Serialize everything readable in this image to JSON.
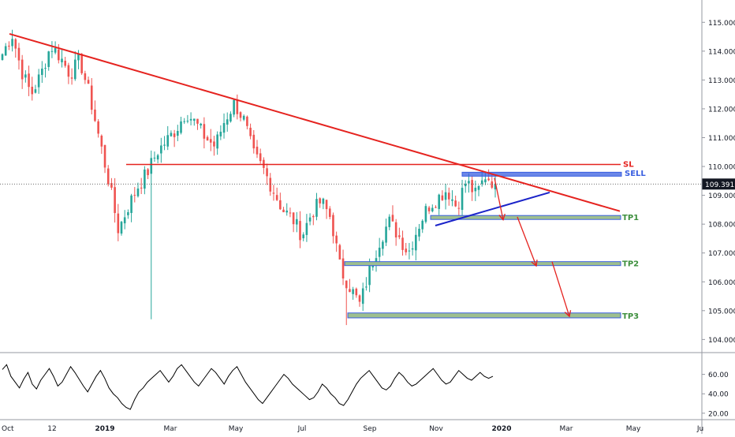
{
  "chart_data": [
    {
      "type": "candlestick",
      "series_name": "",
      "y_axis": {
        "min": 103.6,
        "max": 115.5,
        "ticks": [
          "115.000",
          "114.000",
          "113.000",
          "112.000",
          "111.000",
          "110.000",
          "109.000",
          "108.000",
          "107.000",
          "106.000",
          "105.000",
          "104.000"
        ],
        "position": "right"
      },
      "x_axis": {
        "ticks": [
          "Oct",
          "12",
          "2019",
          "Mar",
          "May",
          "Jul",
          "Sep",
          "Nov",
          "2020",
          "Mar",
          "May",
          "Ju"
        ]
      },
      "last_price": {
        "label": "109.391",
        "value": 109.391,
        "color": "#131722"
      },
      "candles_trend": [
        [
          "Oct",
          113.9
        ],
        [
          "Oct",
          114.6
        ],
        [
          "Oct",
          113.3
        ],
        [
          "Oct",
          112.5
        ],
        [
          "Oct",
          113.2
        ],
        [
          "12",
          114.2
        ],
        [
          "12",
          113.8
        ],
        [
          "12",
          113.2
        ],
        [
          "12",
          113.7
        ],
        [
          "12",
          112.5
        ],
        [
          "12",
          111.0
        ],
        [
          "12",
          109.5
        ],
        [
          "12",
          107.8
        ],
        [
          "2019",
          108.6
        ],
        [
          "2019",
          109.3
        ],
        [
          "2019",
          109.8
        ],
        [
          "2019",
          110.5
        ],
        [
          "2019",
          110.9
        ],
        [
          "2019",
          111.3
        ],
        [
          "Mar",
          111.9
        ],
        [
          "Mar",
          111.5
        ],
        [
          "Mar",
          111.0
        ],
        [
          "Mar",
          110.7
        ],
        [
          "Mar",
          111.6
        ],
        [
          "May",
          112.2
        ],
        [
          "May",
          111.6
        ],
        [
          "May",
          110.4
        ],
        [
          "May",
          109.9
        ],
        [
          "May",
          109.2
        ],
        [
          "May",
          108.5
        ],
        [
          "Jul",
          108.2
        ],
        [
          "Jul",
          107.6
        ],
        [
          "Jul",
          108.4
        ],
        [
          "Jul",
          108.8
        ],
        [
          "Jul",
          108.2
        ],
        [
          "Jul",
          106.4
        ],
        [
          "Jul",
          105.8
        ],
        [
          "Sep",
          105.2
        ],
        [
          "Sep",
          106.4
        ],
        [
          "Sep",
          107.4
        ],
        [
          "Sep",
          108.1
        ],
        [
          "Sep",
          107.6
        ],
        [
          "Sep",
          107.0
        ],
        [
          "Sep",
          107.9
        ],
        [
          "Nov",
          108.6
        ],
        [
          "Nov",
          108.9
        ],
        [
          "Nov",
          109.2
        ],
        [
          "Nov",
          108.6
        ],
        [
          "Nov",
          109.5
        ],
        [
          "Nov",
          109.0
        ],
        [
          "Nov",
          109.7
        ],
        [
          "Nov",
          109.39
        ]
      ],
      "annotations": {
        "trendline_color": "#e5231f",
        "support_color": "#1a23c9",
        "sl": {
          "label": "SL",
          "value": 110.07,
          "color": "#e5231f"
        },
        "sell": {
          "label": "SELL",
          "low": 109.7,
          "high": 109.8,
          "color": "#3a5fe0"
        },
        "targets": [
          {
            "label": "TP1",
            "low": 108.2,
            "high": 108.3,
            "color": "#3d8f3d",
            "fill": "#9ebf8f"
          },
          {
            "label": "TP2",
            "low": 106.6,
            "high": 106.7,
            "color": "#3d8f3d",
            "fill": "#9ebf8f"
          },
          {
            "label": "TP3",
            "low": 104.75,
            "high": 104.92,
            "color": "#3d8f3d",
            "fill": "#9ebf8f"
          }
        ],
        "arrow_color": "#e5231f"
      },
      "colors": {
        "up": "#26a69a",
        "down": "#ef5350",
        "wick": "#444444"
      }
    },
    {
      "type": "line",
      "series_name": "",
      "y_axis": {
        "min": 15,
        "max": 80,
        "ticks": [
          "60.00",
          "40.00",
          "20.00"
        ],
        "position": "right"
      },
      "values": [
        65,
        70,
        58,
        52,
        46,
        55,
        62,
        50,
        45,
        54,
        60,
        66,
        58,
        48,
        52,
        60,
        68,
        62,
        55,
        48,
        42,
        50,
        58,
        64,
        56,
        46,
        40,
        36,
        30,
        26,
        24,
        34,
        42,
        46,
        52,
        56,
        60,
        64,
        58,
        52,
        58,
        66,
        70,
        64,
        58,
        52,
        48,
        54,
        60,
        66,
        62,
        56,
        50,
        58,
        64,
        68,
        60,
        52,
        46,
        40,
        34,
        30,
        36,
        42,
        48,
        54,
        60,
        56,
        50,
        46,
        42,
        38,
        34,
        36,
        42,
        50,
        46,
        40,
        36,
        30,
        28,
        34,
        42,
        50,
        56,
        60,
        64,
        58,
        52,
        46,
        44,
        48,
        56,
        62,
        58,
        52,
        48,
        50,
        54,
        58,
        62,
        66,
        60,
        54,
        50,
        52,
        58,
        64,
        60,
        56,
        54,
        58,
        62,
        58,
        56,
        58
      ],
      "color": "#000000"
    }
  ]
}
